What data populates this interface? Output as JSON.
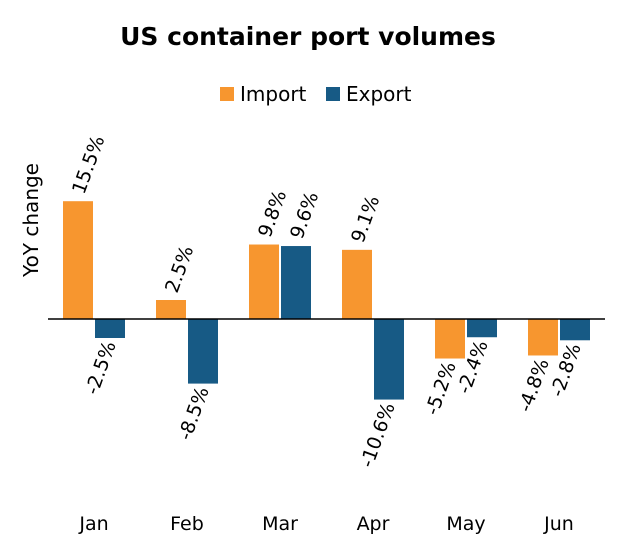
{
  "chart_data": {
    "type": "bar",
    "title": "US container port volumes",
    "xlabel": "",
    "ylabel": "YoY change",
    "categories": [
      "Jan",
      "Feb",
      "Mar",
      "Apr",
      "May",
      "Jun"
    ],
    "series": [
      {
        "name": "Import",
        "color": "#F7962F",
        "values": [
          15.5,
          2.5,
          9.8,
          9.1,
          -5.2,
          -4.8
        ],
        "labels": [
          "15.5%",
          "2.5%",
          "9.8%",
          "9.1%",
          "-5.2%",
          "-4.8%"
        ]
      },
      {
        "name": "Export",
        "color": "#175A85",
        "values": [
          -2.5,
          -8.5,
          9.6,
          -10.6,
          -2.4,
          -2.8
        ],
        "labels": [
          "-2.5%",
          "-8.5%",
          "9.6%",
          "-10.6%",
          "-2.4%",
          "-2.8%"
        ]
      }
    ],
    "ylim": [
      -10.6,
      15.5
    ],
    "grid": false,
    "legend_position": "top-center"
  }
}
